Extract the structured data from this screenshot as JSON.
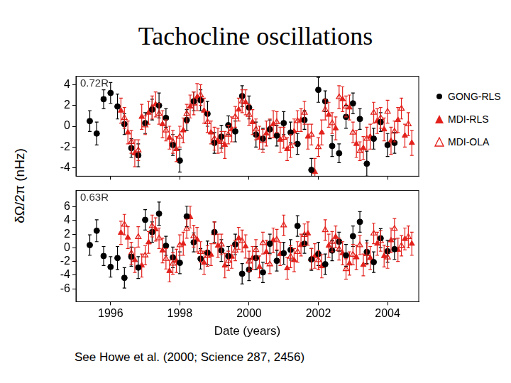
{
  "caption": "See Howe et al. (2000; Science 287, 2456)",
  "chart_data": [
    {
      "type": "scatter",
      "title": "Tachocline oscillations",
      "y_label": "δΩ/2π (nHz)",
      "annotations": [
        "0.72R"
      ],
      "legend": "right",
      "grid": false,
      "tick_labels": "y",
      "xlim": [
        1995.0,
        2004.9
      ],
      "xticks": [
        1996,
        1998,
        2000,
        2002,
        2004
      ],
      "ylim": [
        -4.8,
        4.8
      ],
      "yticks": [
        4,
        2,
        0,
        -2,
        -4
      ],
      "series": [
        {
          "name": "GONG-RLS",
          "color": "#000000",
          "marker": "circle",
          "x": [
            1995.4,
            1995.6,
            1995.8,
            1996.0,
            1996.2,
            1996.4,
            1996.6,
            1996.8,
            1997.0,
            1997.2,
            1997.4,
            1997.6,
            1997.8,
            1998.0,
            1998.2,
            1998.4,
            1998.6,
            1998.8,
            1999.0,
            1999.2,
            1999.4,
            1999.6,
            1999.8,
            2000.0,
            2000.2,
            2000.4,
            2000.6,
            2000.8,
            2001.0,
            2001.2,
            2001.4,
            2001.6,
            2001.8,
            2002.0,
            2002.2,
            2002.4,
            2002.6,
            2002.8,
            2003.0,
            2003.2,
            2003.4,
            2003.6,
            2003.8,
            2004.0,
            2004.2
          ],
          "values": [
            0.5,
            -0.7,
            2.6,
            3.2,
            1.9,
            0.2,
            -2.1,
            -2.8,
            0.3,
            1.6,
            2.0,
            0.8,
            -1.8,
            -3.3,
            0.6,
            2.4,
            2.5,
            1.2,
            -1.6,
            -1.0,
            0.1,
            -0.5,
            2.9,
            1.8,
            -0.8,
            -1.2,
            -0.3,
            -0.9,
            0.3,
            -0.6,
            -1.7,
            0.6,
            -4.2,
            3.5,
            2.4,
            -1.9,
            -2.6,
            0.9,
            2.2,
            0.7,
            -3.6,
            -1.2,
            0.4,
            -1.8,
            -1.6
          ],
          "errors": [
            1.0,
            1.1,
            0.9,
            1.0,
            1.2,
            1.0,
            0.9,
            1.1,
            1.0,
            1.0,
            1.2,
            0.9,
            1.0,
            1.1,
            1.0,
            0.9,
            1.0,
            1.2,
            1.0,
            1.1,
            0.9,
            1.0,
            1.0,
            1.1,
            1.2,
            1.0,
            0.9,
            1.0,
            1.1,
            1.0,
            1.0,
            0.9,
            1.1,
            1.2,
            1.0,
            1.0,
            0.9,
            1.1,
            1.0,
            1.0,
            1.2,
            1.0,
            0.9,
            1.1,
            1.0
          ]
        },
        {
          "name": "MDI-RLS",
          "color": "#e3211c",
          "marker": "triangle",
          "x": [
            1996.3,
            1996.5,
            1996.7,
            1996.9,
            1997.1,
            1997.3,
            1997.5,
            1997.7,
            1997.9,
            1998.1,
            1998.3,
            1998.5,
            1998.7,
            1998.9,
            1999.1,
            1999.3,
            1999.5,
            1999.7,
            1999.9,
            2000.1,
            2000.3,
            2000.5,
            2000.7,
            2000.9,
            2001.1,
            2001.3,
            2001.5,
            2001.7,
            2001.9,
            2002.1,
            2002.3,
            2002.5,
            2002.7,
            2002.9,
            2003.1,
            2003.3,
            2003.5,
            2003.7,
            2003.9,
            2004.1,
            2004.3,
            2004.5,
            2004.7
          ],
          "values": [
            1.5,
            -0.6,
            -2.6,
            0.9,
            1.3,
            2.1,
            0.2,
            -1.1,
            -2.2,
            -0.4,
            1.9,
            2.8,
            1.5,
            -0.6,
            -1.4,
            -1.8,
            -0.3,
            1.6,
            2.3,
            0.4,
            -1.1,
            -0.7,
            0.2,
            -1.3,
            -2.2,
            -0.5,
            0.6,
            -1.0,
            -4.4,
            -0.6,
            1.1,
            -0.2,
            2.6,
            1.8,
            -1.7,
            -2.1,
            -1.0,
            0.5,
            -0.3,
            -1.4,
            0.6,
            -0.9,
            -1.6
          ],
          "errors": [
            1.2,
            1.1,
            1.3,
            1.2,
            1.1,
            1.2,
            1.3,
            1.1,
            1.2,
            1.2,
            1.1,
            1.3,
            1.2,
            1.1,
            1.2,
            1.3,
            1.2,
            1.1,
            1.2,
            1.2,
            1.1,
            1.2,
            1.3,
            1.2,
            1.1,
            1.2,
            1.1,
            1.2,
            1.3,
            1.2,
            1.2,
            1.1,
            1.2,
            1.2,
            1.3,
            1.1,
            1.2,
            1.2,
            1.1,
            1.3,
            1.2,
            1.1,
            1.2
          ]
        },
        {
          "name": "MDI-OLA",
          "color": "#e3211c",
          "marker": "open_triangle",
          "x": [
            1996.4,
            1996.6,
            1996.8,
            1997.0,
            1997.2,
            1997.4,
            1997.6,
            1997.8,
            1998.0,
            1998.2,
            1998.4,
            1998.6,
            1998.8,
            1999.0,
            1999.2,
            1999.4,
            1999.6,
            1999.8,
            2000.0,
            2000.2,
            2000.4,
            2000.6,
            2000.8,
            2001.0,
            2001.2,
            2001.4,
            2001.6,
            2001.8,
            2002.0,
            2002.2,
            2002.4,
            2002.6,
            2002.8,
            2003.0,
            2003.2,
            2003.4,
            2003.6,
            2003.8,
            2004.0,
            2004.2,
            2004.4,
            2004.6
          ],
          "values": [
            0.8,
            -1.5,
            -2.3,
            0.1,
            1.8,
            1.2,
            -0.4,
            -1.5,
            -1.0,
            1.2,
            2.2,
            3.0,
            0.4,
            -1.2,
            -1.5,
            -0.8,
            0.9,
            2.4,
            1.1,
            -0.3,
            -1.4,
            -0.2,
            0.4,
            -1.1,
            -1.9,
            0.5,
            1.3,
            -0.8,
            -2.0,
            1.6,
            0.3,
            2.8,
            1.9,
            -0.6,
            -2.4,
            -1.2,
            1.3,
            0.8,
            1.4,
            -0.5,
            1.7,
            0.2
          ],
          "errors": [
            1.0,
            1.1,
            1.0,
            0.9,
            1.1,
            1.0,
            1.0,
            1.1,
            1.0,
            0.9,
            1.1,
            1.0,
            1.0,
            1.1,
            1.0,
            0.9,
            1.0,
            1.1,
            1.0,
            1.0,
            1.1,
            0.9,
            1.0,
            1.0,
            1.1,
            1.0,
            1.1,
            1.0,
            0.9,
            1.0,
            1.0,
            1.1,
            1.0,
            1.0,
            0.9,
            1.1,
            1.0,
            1.0,
            1.1,
            1.0,
            1.0,
            1.1
          ]
        }
      ]
    },
    {
      "type": "scatter",
      "x_label": "Date (years)",
      "annotations": [
        "0.63R"
      ],
      "grid": false,
      "xlim": [
        1995.0,
        2004.9
      ],
      "xticks": [
        1996,
        1998,
        2000,
        2002,
        2004
      ],
      "ylim": [
        -7.9,
        8.4
      ],
      "yticks": [
        6,
        4,
        2,
        0,
        -2,
        -4,
        -6
      ],
      "series": [
        {
          "name": "GONG-RLS",
          "color": "#000000",
          "marker": "circle",
          "x": [
            1995.4,
            1995.6,
            1995.8,
            1996.0,
            1996.2,
            1996.4,
            1996.6,
            1996.8,
            1997.0,
            1997.2,
            1997.4,
            1997.6,
            1997.8,
            1998.0,
            1998.2,
            1998.4,
            1998.6,
            1998.8,
            1999.0,
            1999.2,
            1999.4,
            1999.6,
            1999.8,
            2000.0,
            2000.2,
            2000.4,
            2000.6,
            2000.8,
            2001.0,
            2001.2,
            2001.4,
            2001.6,
            2001.8,
            2002.0,
            2002.2,
            2002.4,
            2002.6,
            2002.8,
            2003.0,
            2003.2,
            2003.4,
            2003.6,
            2003.8,
            2004.0,
            2004.2
          ],
          "values": [
            0.4,
            2.5,
            -1.2,
            -2.8,
            -1.5,
            -4.4,
            -1.3,
            -2.9,
            4.1,
            2.3,
            5.0,
            0.3,
            -1.4,
            -2.2,
            4.6,
            0.8,
            -1.6,
            -0.7,
            2.3,
            -0.4,
            -1.2,
            0.5,
            -3.8,
            -3.2,
            -1.5,
            -3.6,
            0.6,
            -1.9,
            -0.8,
            -0.3,
            3.2,
            0.6,
            -1.7,
            -0.9,
            -2.4,
            -0.4,
            0.9,
            -1.1,
            1.7,
            3.8,
            -0.6,
            -2.1,
            1.4,
            -0.5,
            -0.2
          ],
          "errors": [
            1.5,
            1.6,
            1.4,
            1.5,
            1.7,
            1.5,
            1.4,
            1.6,
            1.5,
            1.5,
            1.7,
            1.4,
            1.5,
            1.6,
            1.5,
            1.4,
            1.5,
            1.7,
            1.5,
            1.6,
            1.4,
            1.5,
            1.5,
            1.6,
            1.7,
            1.5,
            1.4,
            1.5,
            1.6,
            1.5,
            1.5,
            1.4,
            1.6,
            1.7,
            1.5,
            1.5,
            1.4,
            1.6,
            1.5,
            1.5,
            1.7,
            1.5,
            1.4,
            1.6,
            1.5
          ]
        },
        {
          "name": "MDI-RLS",
          "color": "#e3211c",
          "marker": "triangle",
          "x": [
            1996.3,
            1996.5,
            1996.7,
            1996.9,
            1997.1,
            1997.3,
            1997.5,
            1997.7,
            1997.9,
            1998.1,
            1998.3,
            1998.5,
            1998.7,
            1998.9,
            1999.1,
            1999.3,
            1999.5,
            1999.7,
            1999.9,
            2000.1,
            2000.3,
            2000.5,
            2000.7,
            2000.9,
            2001.1,
            2001.3,
            2001.5,
            2001.7,
            2001.9,
            2002.1,
            2002.3,
            2002.5,
            2002.7,
            2002.9,
            2003.1,
            2003.3,
            2003.5,
            2003.7,
            2003.9,
            2004.1,
            2004.3,
            2004.5,
            2004.7
          ],
          "values": [
            2.2,
            1.5,
            -1.8,
            -2.6,
            0.8,
            2.7,
            -0.4,
            -3.4,
            -1.9,
            0.6,
            4.5,
            1.2,
            -2.2,
            -1.0,
            0.3,
            -2.6,
            -1.3,
            1.4,
            0.2,
            -1.5,
            -2.8,
            -0.6,
            1.1,
            -0.9,
            -3.0,
            -1.8,
            0.4,
            2.1,
            -1.2,
            -2.7,
            0.3,
            1.6,
            -0.8,
            -2.3,
            -1.4,
            -2.5,
            -1.5,
            0.6,
            -1.2,
            1.1,
            -0.3,
            1.3,
            0.6
          ],
          "errors": [
            1.7,
            1.6,
            1.8,
            1.7,
            1.6,
            1.7,
            1.8,
            1.6,
            1.7,
            1.7,
            1.6,
            1.8,
            1.7,
            1.6,
            1.7,
            1.8,
            1.7,
            1.6,
            1.7,
            1.7,
            1.6,
            1.7,
            1.8,
            1.7,
            1.6,
            1.7,
            1.6,
            1.7,
            1.8,
            1.7,
            1.7,
            1.6,
            1.7,
            1.7,
            1.8,
            1.6,
            1.7,
            1.7,
            1.6,
            1.8,
            1.7,
            1.6,
            1.7
          ]
        },
        {
          "name": "MDI-OLA",
          "color": "#e3211c",
          "marker": "open_triangle",
          "x": [
            1996.4,
            1996.6,
            1996.8,
            1997.0,
            1997.2,
            1997.4,
            1997.6,
            1997.8,
            1998.0,
            1998.2,
            1998.4,
            1998.6,
            1998.8,
            1999.0,
            1999.2,
            1999.4,
            1999.6,
            1999.8,
            2000.0,
            2000.2,
            2000.4,
            2000.6,
            2000.8,
            2001.0,
            2001.2,
            2001.4,
            2001.6,
            2001.8,
            2002.0,
            2002.2,
            2002.4,
            2002.6,
            2002.8,
            2003.0,
            2003.2,
            2003.4,
            2003.6,
            2003.8,
            2004.0,
            2004.2,
            2004.4,
            2004.6
          ],
          "values": [
            3.4,
            -0.8,
            1.6,
            -1.1,
            3.2,
            1.4,
            -1.6,
            -2.3,
            0.4,
            2.8,
            1.7,
            -0.6,
            -1.2,
            2.2,
            0.5,
            -1.9,
            -0.4,
            1.0,
            -2.0,
            -0.3,
            0.7,
            -2.4,
            1.2,
            3.3,
            -1.3,
            -0.6,
            1.9,
            -1.6,
            -1.8,
            2.6,
            0.9,
            -0.2,
            -3.1,
            -1.0,
            0.4,
            -0.9,
            2.1,
            1.0,
            -1.4,
            2.8,
            0.3,
            1.6
          ],
          "errors": [
            1.5,
            1.6,
            1.5,
            1.4,
            1.6,
            1.5,
            1.5,
            1.6,
            1.5,
            1.4,
            1.6,
            1.5,
            1.5,
            1.6,
            1.5,
            1.4,
            1.5,
            1.6,
            1.5,
            1.5,
            1.6,
            1.4,
            1.5,
            1.5,
            1.6,
            1.5,
            1.6,
            1.5,
            1.4,
            1.5,
            1.5,
            1.6,
            1.5,
            1.5,
            1.4,
            1.6,
            1.5,
            1.5,
            1.6,
            1.5,
            1.5,
            1.6
          ]
        }
      ]
    }
  ]
}
